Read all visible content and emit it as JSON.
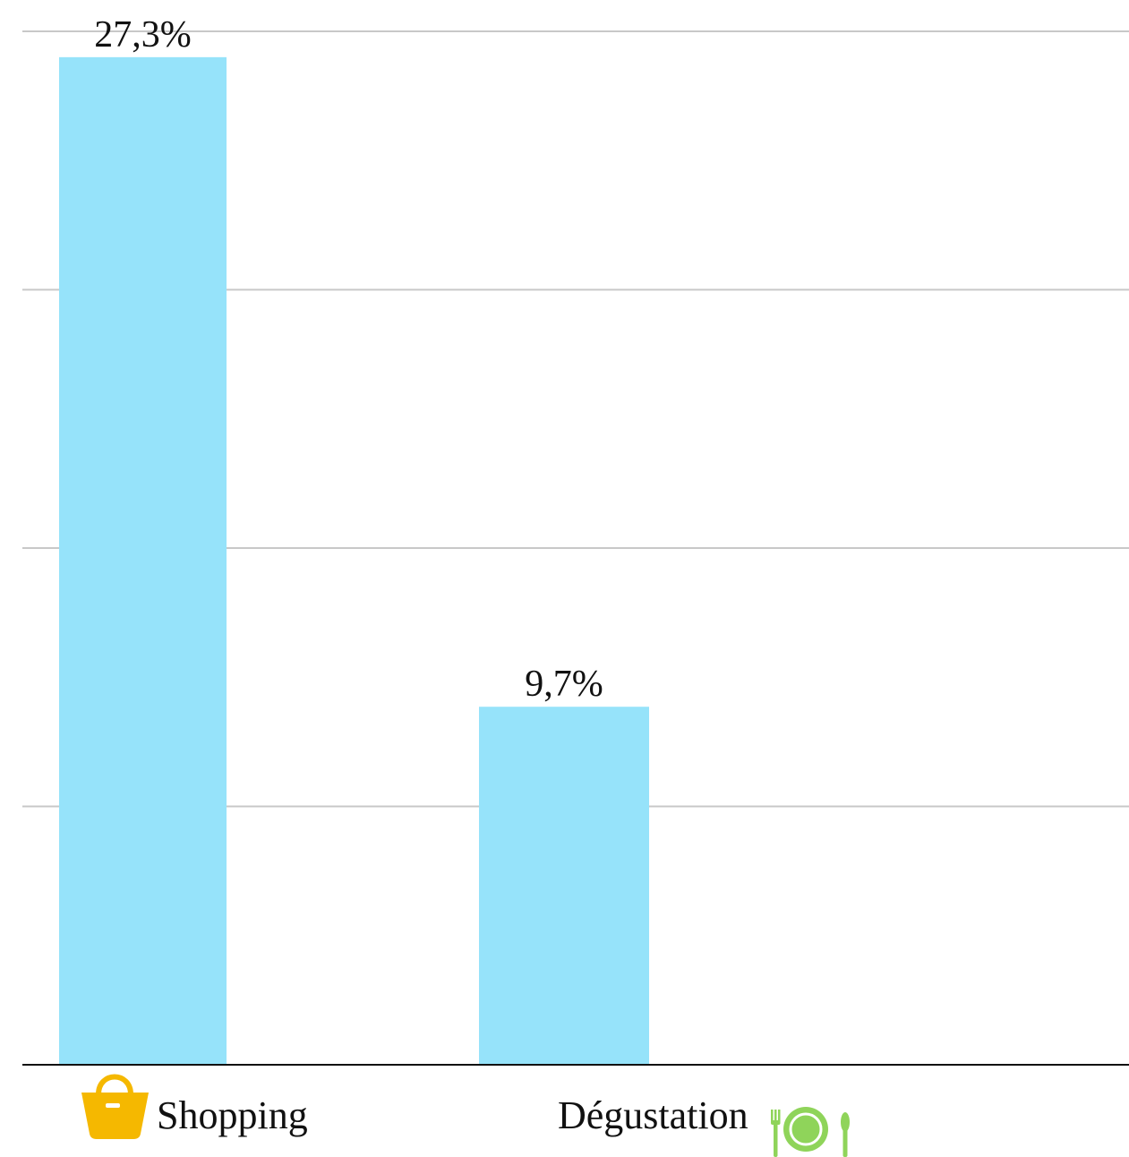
{
  "chart_data": {
    "type": "bar",
    "categories": [
      "Shopping",
      "Dégustation"
    ],
    "values": [
      27.3,
      9.7
    ],
    "value_labels": [
      "27,3%",
      "9,7%"
    ],
    "title": "",
    "xlabel": "",
    "ylabel": "",
    "ylim": [
      0,
      28
    ],
    "grid": true,
    "bar_color": "#96e3fa",
    "grid_color": "#c8c8c8",
    "axis_color": "#111111",
    "category_icons": [
      "shopping-basket-icon",
      "plate-cutlery-icon"
    ],
    "icon_colors": [
      "#f5b800",
      "#8fd45a"
    ]
  }
}
